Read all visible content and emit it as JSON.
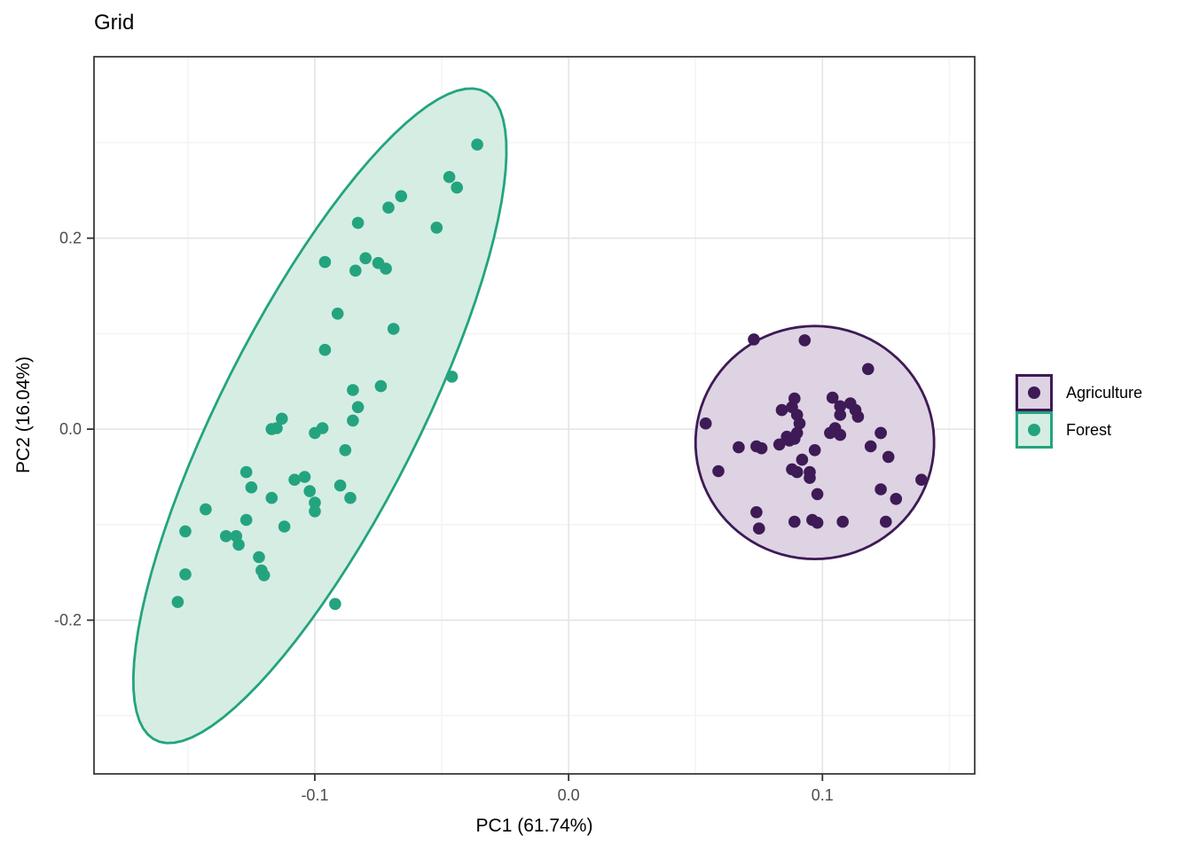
{
  "title": "Grid",
  "colors": {
    "agriculture": "#3E1A56",
    "agriculture_fill": "#DDD3E2",
    "forest": "#23A47F",
    "forest_fill": "#D6EDE4",
    "grid_major": "#E4E4E4",
    "grid_minor": "#F3F3F3",
    "panel_border": "#3A3A3A",
    "tick_mark": "#333333",
    "tick_text": "#4D4D4D",
    "text": "#000000"
  },
  "legend": {
    "position": "right",
    "items": [
      {
        "label": "Agriculture",
        "series": "Agriculture"
      },
      {
        "label": "Forest",
        "series": "Forest"
      }
    ]
  },
  "chart_data": {
    "type": "scatter",
    "title": "Grid",
    "xlabel": "PC1 (61.74%)",
    "ylabel": "PC2 (16.04%)",
    "xlim": [
      -0.187,
      0.16
    ],
    "ylim": [
      -0.361,
      0.39
    ],
    "grid": true,
    "legend_position": "right",
    "x_major_ticks": [
      -0.1,
      0.0,
      0.1
    ],
    "x_tick_labels": [
      "-0.1",
      "0.0",
      "0.1"
    ],
    "x_minor_ticks": [
      -0.15,
      -0.05,
      0.05,
      0.15
    ],
    "y_major_ticks": [
      0.2,
      0.0,
      -0.2
    ],
    "y_tick_labels": [
      "0.2",
      "0.0",
      "-0.2"
    ],
    "y_minor_ticks": [
      0.3,
      0.1,
      -0.1,
      -0.3
    ],
    "series": [
      {
        "name": "Forest",
        "color_key": "forest",
        "fill_key": "forest_fill",
        "ellipse": {
          "cx": -0.098,
          "cy": 0.014,
          "a": 0.348,
          "b": 0.0425,
          "angle_deg": 80
        },
        "points": [
          [
            -0.036,
            0.298
          ],
          [
            -0.047,
            0.264
          ],
          [
            -0.044,
            0.253
          ],
          [
            -0.066,
            0.244
          ],
          [
            -0.071,
            0.232
          ],
          [
            -0.083,
            0.216
          ],
          [
            -0.052,
            0.211
          ],
          [
            -0.08,
            0.179
          ],
          [
            -0.096,
            0.175
          ],
          [
            -0.075,
            0.174
          ],
          [
            -0.072,
            0.168
          ],
          [
            -0.084,
            0.166
          ],
          [
            -0.091,
            0.121
          ],
          [
            -0.069,
            0.105
          ],
          [
            -0.096,
            0.083
          ],
          [
            -0.046,
            0.055
          ],
          [
            -0.074,
            0.045
          ],
          [
            -0.085,
            0.041
          ],
          [
            -0.083,
            0.023
          ],
          [
            -0.113,
            0.011
          ],
          [
            -0.085,
            0.009
          ],
          [
            -0.097,
            0.001
          ],
          [
            -0.115,
            0.001
          ],
          [
            -0.117,
            0.0
          ],
          [
            -0.1,
            -0.004
          ],
          [
            -0.088,
            -0.022
          ],
          [
            -0.127,
            -0.045
          ],
          [
            -0.104,
            -0.05
          ],
          [
            -0.108,
            -0.053
          ],
          [
            -0.09,
            -0.059
          ],
          [
            -0.125,
            -0.061
          ],
          [
            -0.102,
            -0.065
          ],
          [
            -0.117,
            -0.072
          ],
          [
            -0.086,
            -0.072
          ],
          [
            -0.1,
            -0.077
          ],
          [
            -0.143,
            -0.084
          ],
          [
            -0.1,
            -0.086
          ],
          [
            -0.127,
            -0.095
          ],
          [
            -0.112,
            -0.102
          ],
          [
            -0.151,
            -0.107
          ],
          [
            -0.135,
            -0.112
          ],
          [
            -0.131,
            -0.112
          ],
          [
            -0.13,
            -0.121
          ],
          [
            -0.122,
            -0.134
          ],
          [
            -0.121,
            -0.148
          ],
          [
            -0.12,
            -0.153
          ],
          [
            -0.151,
            -0.152
          ],
          [
            -0.154,
            -0.181
          ],
          [
            -0.092,
            -0.183
          ]
        ]
      },
      {
        "name": "Agriculture",
        "color_key": "agriculture",
        "fill_key": "agriculture_fill",
        "ellipse": {
          "cx": 0.097,
          "cy": -0.014,
          "a": 0.122,
          "b": 0.047,
          "angle_deg": 90
        },
        "points": [
          [
            0.073,
            0.094
          ],
          [
            0.093,
            0.093
          ],
          [
            0.118,
            0.063
          ],
          [
            0.089,
            0.032
          ],
          [
            0.104,
            0.033
          ],
          [
            0.111,
            0.027
          ],
          [
            0.107,
            0.024
          ],
          [
            0.088,
            0.023
          ],
          [
            0.084,
            0.02
          ],
          [
            0.113,
            0.02
          ],
          [
            0.09,
            0.015
          ],
          [
            0.107,
            0.015
          ],
          [
            0.114,
            0.013
          ],
          [
            0.054,
            0.006
          ],
          [
            0.091,
            0.006
          ],
          [
            0.105,
            0.001
          ],
          [
            0.103,
            -0.004
          ],
          [
            0.09,
            -0.004
          ],
          [
            0.123,
            -0.004
          ],
          [
            0.107,
            -0.006
          ],
          [
            0.086,
            -0.008
          ],
          [
            0.089,
            -0.01
          ],
          [
            0.087,
            -0.012
          ],
          [
            0.083,
            -0.016
          ],
          [
            0.074,
            -0.018
          ],
          [
            0.119,
            -0.018
          ],
          [
            0.067,
            -0.019
          ],
          [
            0.076,
            -0.02
          ],
          [
            0.097,
            -0.022
          ],
          [
            0.126,
            -0.029
          ],
          [
            0.092,
            -0.032
          ],
          [
            0.088,
            -0.042
          ],
          [
            0.059,
            -0.044
          ],
          [
            0.09,
            -0.045
          ],
          [
            0.095,
            -0.045
          ],
          [
            0.095,
            -0.051
          ],
          [
            0.139,
            -0.053
          ],
          [
            0.123,
            -0.063
          ],
          [
            0.098,
            -0.068
          ],
          [
            0.129,
            -0.073
          ],
          [
            0.074,
            -0.087
          ],
          [
            0.096,
            -0.095
          ],
          [
            0.089,
            -0.097
          ],
          [
            0.108,
            -0.097
          ],
          [
            0.125,
            -0.097
          ],
          [
            0.098,
            -0.098
          ],
          [
            0.075,
            -0.104
          ],
          [
            0.123,
            -0.004
          ]
        ]
      }
    ]
  }
}
